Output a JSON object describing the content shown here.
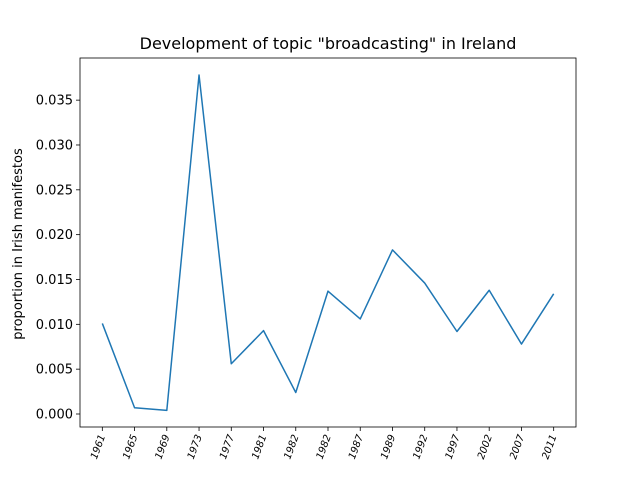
{
  "chart_data": {
    "type": "line",
    "title": "Development of topic \"broadcasting\" in Ireland",
    "xlabel": "",
    "ylabel": "proportion in Irish manifestos",
    "categories": [
      "1961",
      "1965",
      "1969",
      "1973",
      "1977",
      "1981",
      "1982",
      "1982",
      "1987",
      "1989",
      "1992",
      "1997",
      "2002",
      "2007",
      "2011"
    ],
    "series": [
      {
        "values": [
          0.0101,
          0.0007,
          0.0004,
          0.0378,
          0.0056,
          0.0093,
          0.0024,
          0.0137,
          0.0106,
          0.0183,
          0.0146,
          0.0092,
          0.0138,
          0.0078,
          0.0134
        ],
        "color": "#1f77b4"
      }
    ],
    "yticks": [
      "0.000",
      "0.005",
      "0.010",
      "0.015",
      "0.020",
      "0.025",
      "0.030",
      "0.035"
    ],
    "ylim": [
      -0.00145,
      0.0397
    ],
    "grid": false,
    "legend": "none"
  }
}
